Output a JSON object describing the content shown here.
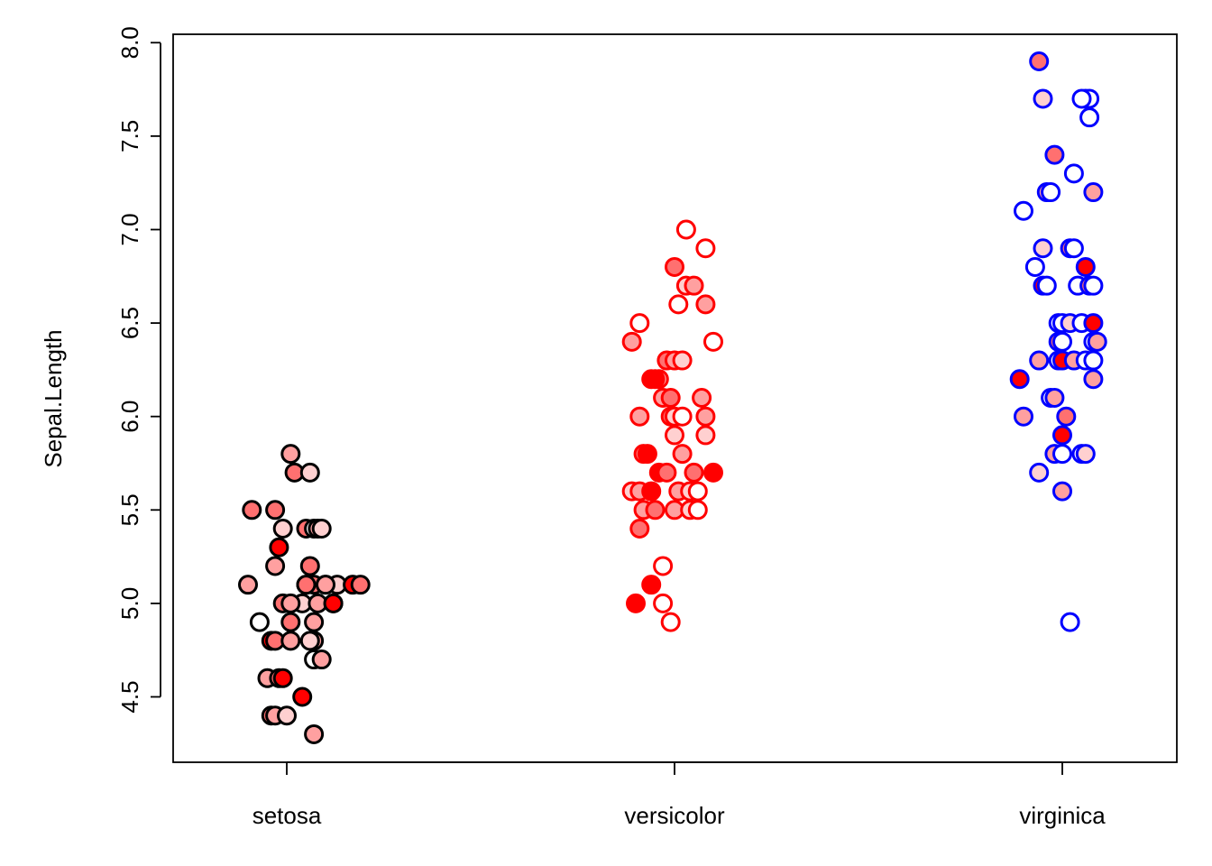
{
  "chart_data": {
    "type": "scatter",
    "xlabel": "",
    "ylabel": "Sepal.Length",
    "ylim": [
      4.3,
      8.0
    ],
    "yticks": [
      "4.5",
      "5.0",
      "5.5",
      "6.0",
      "6.5",
      "7.0",
      "7.5",
      "8.0"
    ],
    "categories": [
      "setosa",
      "versicolor",
      "virginica"
    ],
    "grid": false,
    "stroke_colors": {
      "setosa": "#000000",
      "versicolor": "#ff0000",
      "virginica": "#0000ff"
    },
    "fill_scale": [
      "#ffffff",
      "#ffd0d0",
      "#ffa0a0",
      "#ff7070",
      "#ff0000"
    ],
    "series": [
      {
        "category": "setosa",
        "points": [
          {
            "x": 0.91,
            "y": 5.5,
            "fill": 3
          },
          {
            "x": 0.97,
            "y": 5.5,
            "fill": 3
          },
          {
            "x": 0.98,
            "y": 5.3,
            "fill": 4
          },
          {
            "x": 0.97,
            "y": 5.2,
            "fill": 2
          },
          {
            "x": 1.06,
            "y": 5.2,
            "fill": 3
          },
          {
            "x": 0.9,
            "y": 5.1,
            "fill": 2
          },
          {
            "x": 1.05,
            "y": 5.1,
            "fill": 1
          },
          {
            "x": 1.07,
            "y": 5.1,
            "fill": 3
          },
          {
            "x": 1.1,
            "y": 5.1,
            "fill": 4
          },
          {
            "x": 1.13,
            "y": 5.1,
            "fill": 1
          },
          {
            "x": 1.17,
            "y": 5.1,
            "fill": 4
          },
          {
            "x": 1.19,
            "y": 5.1,
            "fill": 3
          },
          {
            "x": 0.99,
            "y": 5.0,
            "fill": 3
          },
          {
            "x": 1.04,
            "y": 5.0,
            "fill": 1
          },
          {
            "x": 1.08,
            "y": 5.0,
            "fill": 2
          },
          {
            "x": 1.12,
            "y": 5.0,
            "fill": 4
          },
          {
            "x": 1.01,
            "y": 5.0,
            "fill": 2
          },
          {
            "x": 0.93,
            "y": 4.9,
            "fill": 0
          },
          {
            "x": 1.01,
            "y": 4.9,
            "fill": 3
          },
          {
            "x": 1.07,
            "y": 4.9,
            "fill": 2
          },
          {
            "x": 1.07,
            "y": 4.8,
            "fill": 2
          },
          {
            "x": 0.96,
            "y": 4.8,
            "fill": 4
          },
          {
            "x": 0.97,
            "y": 4.8,
            "fill": 3
          },
          {
            "x": 1.01,
            "y": 4.8,
            "fill": 2
          },
          {
            "x": 1.06,
            "y": 4.8,
            "fill": 1
          },
          {
            "x": 1.07,
            "y": 4.7,
            "fill": 0
          },
          {
            "x": 1.09,
            "y": 4.7,
            "fill": 2
          },
          {
            "x": 0.95,
            "y": 4.6,
            "fill": 2
          },
          {
            "x": 0.98,
            "y": 4.6,
            "fill": 3
          },
          {
            "x": 0.99,
            "y": 4.6,
            "fill": 4
          },
          {
            "x": 1.04,
            "y": 4.5,
            "fill": 4
          },
          {
            "x": 0.96,
            "y": 4.4,
            "fill": 3
          },
          {
            "x": 0.97,
            "y": 4.4,
            "fill": 2
          },
          {
            "x": 1.0,
            "y": 4.4,
            "fill": 1
          },
          {
            "x": 1.07,
            "y": 4.3,
            "fill": 2
          },
          {
            "x": 1.01,
            "y": 5.8,
            "fill": 2
          },
          {
            "x": 1.02,
            "y": 5.7,
            "fill": 3
          },
          {
            "x": 1.06,
            "y": 5.7,
            "fill": 1
          },
          {
            "x": 0.99,
            "y": 5.4,
            "fill": 1
          },
          {
            "x": 1.05,
            "y": 5.4,
            "fill": 3
          },
          {
            "x": 1.07,
            "y": 5.4,
            "fill": 0
          },
          {
            "x": 1.08,
            "y": 5.4,
            "fill": 2
          },
          {
            "x": 1.09,
            "y": 5.4,
            "fill": 1
          },
          {
            "x": 1.1,
            "y": 5.1,
            "fill": 2
          },
          {
            "x": 1.12,
            "y": 5.0,
            "fill": 4
          },
          {
            "x": 1.05,
            "y": 5.1,
            "fill": 3
          }
        ]
      },
      {
        "category": "versicolor",
        "points": [
          {
            "x": 2.03,
            "y": 7.0,
            "fill": 0
          },
          {
            "x": 2.08,
            "y": 6.9,
            "fill": 0
          },
          {
            "x": 2.0,
            "y": 6.8,
            "fill": 3
          },
          {
            "x": 2.03,
            "y": 6.7,
            "fill": 1
          },
          {
            "x": 2.05,
            "y": 6.7,
            "fill": 2
          },
          {
            "x": 2.08,
            "y": 6.6,
            "fill": 2
          },
          {
            "x": 2.01,
            "y": 6.6,
            "fill": 0
          },
          {
            "x": 1.91,
            "y": 6.5,
            "fill": 0
          },
          {
            "x": 1.89,
            "y": 6.4,
            "fill": 2
          },
          {
            "x": 2.1,
            "y": 6.4,
            "fill": 0
          },
          {
            "x": 1.98,
            "y": 6.3,
            "fill": 3
          },
          {
            "x": 2.0,
            "y": 6.3,
            "fill": 2
          },
          {
            "x": 2.02,
            "y": 6.3,
            "fill": 1
          },
          {
            "x": 1.94,
            "y": 6.2,
            "fill": 4
          },
          {
            "x": 1.96,
            "y": 6.2,
            "fill": 2
          },
          {
            "x": 1.97,
            "y": 6.1,
            "fill": 2
          },
          {
            "x": 1.99,
            "y": 6.1,
            "fill": 3
          },
          {
            "x": 2.07,
            "y": 6.1,
            "fill": 2
          },
          {
            "x": 1.91,
            "y": 6.0,
            "fill": 2
          },
          {
            "x": 1.99,
            "y": 6.0,
            "fill": 3
          },
          {
            "x": 2.0,
            "y": 6.0,
            "fill": 1
          },
          {
            "x": 2.02,
            "y": 6.0,
            "fill": 0
          },
          {
            "x": 2.08,
            "y": 6.0,
            "fill": 2
          },
          {
            "x": 2.0,
            "y": 5.9,
            "fill": 1
          },
          {
            "x": 2.08,
            "y": 5.9,
            "fill": 1
          },
          {
            "x": 1.92,
            "y": 5.8,
            "fill": 3
          },
          {
            "x": 1.93,
            "y": 5.8,
            "fill": 4
          },
          {
            "x": 2.02,
            "y": 5.8,
            "fill": 2
          },
          {
            "x": 1.96,
            "y": 5.7,
            "fill": 4
          },
          {
            "x": 1.98,
            "y": 5.7,
            "fill": 3
          },
          {
            "x": 2.05,
            "y": 5.7,
            "fill": 3
          },
          {
            "x": 2.1,
            "y": 5.7,
            "fill": 4
          },
          {
            "x": 1.89,
            "y": 5.6,
            "fill": 1
          },
          {
            "x": 1.91,
            "y": 5.6,
            "fill": 2
          },
          {
            "x": 1.94,
            "y": 5.6,
            "fill": 4
          },
          {
            "x": 2.01,
            "y": 5.6,
            "fill": 2
          },
          {
            "x": 2.04,
            "y": 5.6,
            "fill": 1
          },
          {
            "x": 2.06,
            "y": 5.6,
            "fill": 0
          },
          {
            "x": 1.92,
            "y": 5.5,
            "fill": 2
          },
          {
            "x": 1.95,
            "y": 5.5,
            "fill": 3
          },
          {
            "x": 2.0,
            "y": 5.5,
            "fill": 2
          },
          {
            "x": 2.04,
            "y": 5.5,
            "fill": 1
          },
          {
            "x": 2.06,
            "y": 5.5,
            "fill": 0
          },
          {
            "x": 1.91,
            "y": 5.4,
            "fill": 3
          },
          {
            "x": 1.97,
            "y": 5.2,
            "fill": 0
          },
          {
            "x": 1.94,
            "y": 5.1,
            "fill": 4
          },
          {
            "x": 1.9,
            "y": 5.0,
            "fill": 4
          },
          {
            "x": 1.97,
            "y": 5.0,
            "fill": 0
          },
          {
            "x": 1.99,
            "y": 4.9,
            "fill": 0
          },
          {
            "x": 1.95,
            "y": 6.2,
            "fill": 4
          }
        ]
      },
      {
        "category": "virginica",
        "points": [
          {
            "x": 2.94,
            "y": 7.9,
            "fill": 3
          },
          {
            "x": 2.95,
            "y": 7.7,
            "fill": 1
          },
          {
            "x": 3.06,
            "y": 7.7,
            "fill": 3
          },
          {
            "x": 3.07,
            "y": 7.7,
            "fill": 0
          },
          {
            "x": 3.05,
            "y": 7.7,
            "fill": 0
          },
          {
            "x": 3.07,
            "y": 7.6,
            "fill": 0
          },
          {
            "x": 2.98,
            "y": 7.4,
            "fill": 3
          },
          {
            "x": 3.03,
            "y": 7.3,
            "fill": 0
          },
          {
            "x": 2.96,
            "y": 7.2,
            "fill": 2
          },
          {
            "x": 2.97,
            "y": 7.2,
            "fill": 0
          },
          {
            "x": 3.08,
            "y": 7.2,
            "fill": 2
          },
          {
            "x": 2.9,
            "y": 7.1,
            "fill": 0
          },
          {
            "x": 2.95,
            "y": 6.9,
            "fill": 1
          },
          {
            "x": 3.02,
            "y": 6.9,
            "fill": 3
          },
          {
            "x": 3.03,
            "y": 6.9,
            "fill": 0
          },
          {
            "x": 2.93,
            "y": 6.8,
            "fill": 0
          },
          {
            "x": 3.06,
            "y": 6.8,
            "fill": 4
          },
          {
            "x": 2.95,
            "y": 6.7,
            "fill": 4
          },
          {
            "x": 2.96,
            "y": 6.7,
            "fill": 0
          },
          {
            "x": 3.04,
            "y": 6.7,
            "fill": 0
          },
          {
            "x": 3.07,
            "y": 6.7,
            "fill": 3
          },
          {
            "x": 3.08,
            "y": 6.7,
            "fill": 0
          },
          {
            "x": 2.99,
            "y": 6.5,
            "fill": 0
          },
          {
            "x": 3.0,
            "y": 6.5,
            "fill": 0
          },
          {
            "x": 3.02,
            "y": 6.5,
            "fill": 1
          },
          {
            "x": 3.05,
            "y": 6.5,
            "fill": 0
          },
          {
            "x": 3.08,
            "y": 6.5,
            "fill": 4
          },
          {
            "x": 2.99,
            "y": 6.4,
            "fill": 3
          },
          {
            "x": 3.0,
            "y": 6.4,
            "fill": 0
          },
          {
            "x": 3.08,
            "y": 6.4,
            "fill": 0
          },
          {
            "x": 3.09,
            "y": 6.4,
            "fill": 2
          },
          {
            "x": 2.94,
            "y": 6.3,
            "fill": 2
          },
          {
            "x": 2.99,
            "y": 6.3,
            "fill": 0
          },
          {
            "x": 3.0,
            "y": 6.3,
            "fill": 4
          },
          {
            "x": 3.03,
            "y": 6.3,
            "fill": 2
          },
          {
            "x": 3.06,
            "y": 6.3,
            "fill": 0
          },
          {
            "x": 3.08,
            "y": 6.3,
            "fill": 0
          },
          {
            "x": 2.89,
            "y": 6.2,
            "fill": 4
          },
          {
            "x": 3.08,
            "y": 6.2,
            "fill": 2
          },
          {
            "x": 2.97,
            "y": 6.1,
            "fill": 0
          },
          {
            "x": 2.98,
            "y": 6.1,
            "fill": 2
          },
          {
            "x": 2.9,
            "y": 6.0,
            "fill": 2
          },
          {
            "x": 3.01,
            "y": 6.0,
            "fill": 3
          },
          {
            "x": 3.0,
            "y": 5.9,
            "fill": 4
          },
          {
            "x": 2.98,
            "y": 5.8,
            "fill": 2
          },
          {
            "x": 3.0,
            "y": 5.8,
            "fill": 0
          },
          {
            "x": 3.05,
            "y": 5.8,
            "fill": 0
          },
          {
            "x": 3.06,
            "y": 5.8,
            "fill": 1
          },
          {
            "x": 2.94,
            "y": 5.7,
            "fill": 1
          },
          {
            "x": 3.0,
            "y": 5.6,
            "fill": 2
          },
          {
            "x": 3.02,
            "y": 4.9,
            "fill": 0
          }
        ]
      }
    ]
  }
}
